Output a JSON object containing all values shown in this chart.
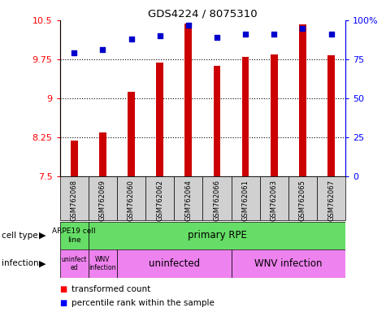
{
  "title": "GDS4224 / 8075310",
  "samples": [
    "GSM762068",
    "GSM762069",
    "GSM762060",
    "GSM762062",
    "GSM762064",
    "GSM762066",
    "GSM762061",
    "GSM762063",
    "GSM762065",
    "GSM762067"
  ],
  "transformed_count": [
    8.18,
    8.35,
    9.12,
    9.68,
    10.43,
    9.63,
    9.8,
    9.85,
    10.42,
    9.82
  ],
  "percentile_rank": [
    79,
    81,
    88,
    90,
    97,
    89,
    91,
    91,
    95,
    91
  ],
  "ylim_left": [
    7.5,
    10.5
  ],
  "ylim_right": [
    0,
    100
  ],
  "yticks_left": [
    7.5,
    8.25,
    9.0,
    9.75,
    10.5
  ],
  "yticks_right": [
    0,
    25,
    50,
    75,
    100
  ],
  "ytick_labels_left": [
    "7.5",
    "8.25",
    "9",
    "9.75",
    "10.5"
  ],
  "ytick_labels_right": [
    "0",
    "25",
    "50",
    "75",
    "100%"
  ],
  "bar_color": "#cc0000",
  "dot_color": "#0000cc",
  "bar_width": 0.25,
  "grid_dotted_ticks": [
    8.25,
    9.0,
    9.75
  ],
  "cell_type_green": "#66dd66",
  "infection_pink": "#ee82ee",
  "sample_box_gray": "#d0d0d0"
}
